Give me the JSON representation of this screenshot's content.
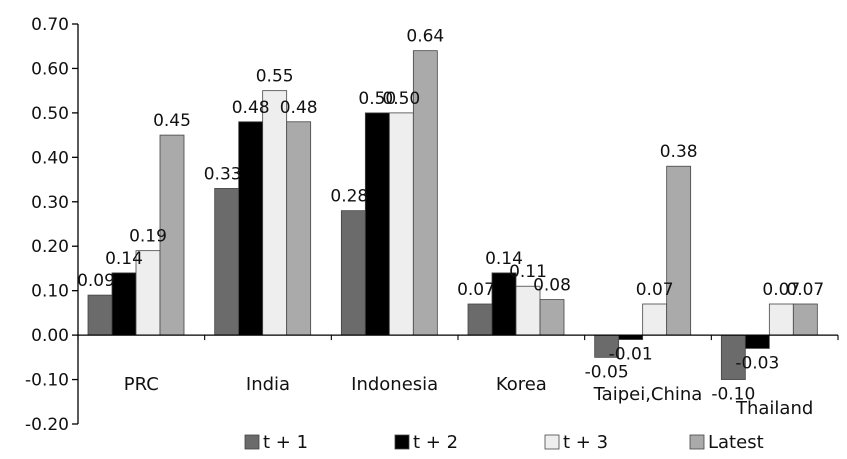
{
  "chart_data": {
    "type": "bar",
    "categories": [
      "PRC",
      "India",
      "Indonesia",
      "Korea",
      "Taipei,China",
      "Thailand"
    ],
    "series": [
      {
        "name": "t + 1",
        "color": "#6b6b6b",
        "values": [
          0.09,
          0.33,
          0.28,
          0.07,
          -0.05,
          -0.1
        ]
      },
      {
        "name": "t + 2",
        "color": "#000000",
        "values": [
          0.14,
          0.48,
          0.5,
          0.14,
          -0.01,
          -0.03
        ]
      },
      {
        "name": "t + 3",
        "color": "#eeeeee",
        "values": [
          0.19,
          0.55,
          0.5,
          0.11,
          0.07,
          0.07
        ]
      },
      {
        "name": "Latest",
        "color": "#aaaaaa",
        "values": [
          0.45,
          0.48,
          0.64,
          0.08,
          0.38,
          0.07
        ]
      }
    ],
    "data_labels": [
      [
        "0.09",
        "0.14",
        "0.19",
        "0.45"
      ],
      [
        "0.33",
        "0.48",
        "0.55",
        "0.48"
      ],
      [
        "0.28",
        "0.50",
        "0.50",
        "0.64"
      ],
      [
        "0.07",
        "0.14",
        "0.11",
        "0.08"
      ],
      [
        "-0.05",
        "-0.01",
        "0.07",
        "0.38"
      ],
      [
        "-0.10",
        "-0.03",
        "0.07",
        "0.07"
      ]
    ],
    "yticks": [
      "0.70",
      "0.60",
      "0.50",
      "0.40",
      "0.30",
      "0.20",
      "0.10",
      "0.00",
      "-0.10",
      "-0.20"
    ],
    "ylim": [
      -0.2,
      0.7
    ],
    "legend_position": "bottom",
    "grid": false
  }
}
